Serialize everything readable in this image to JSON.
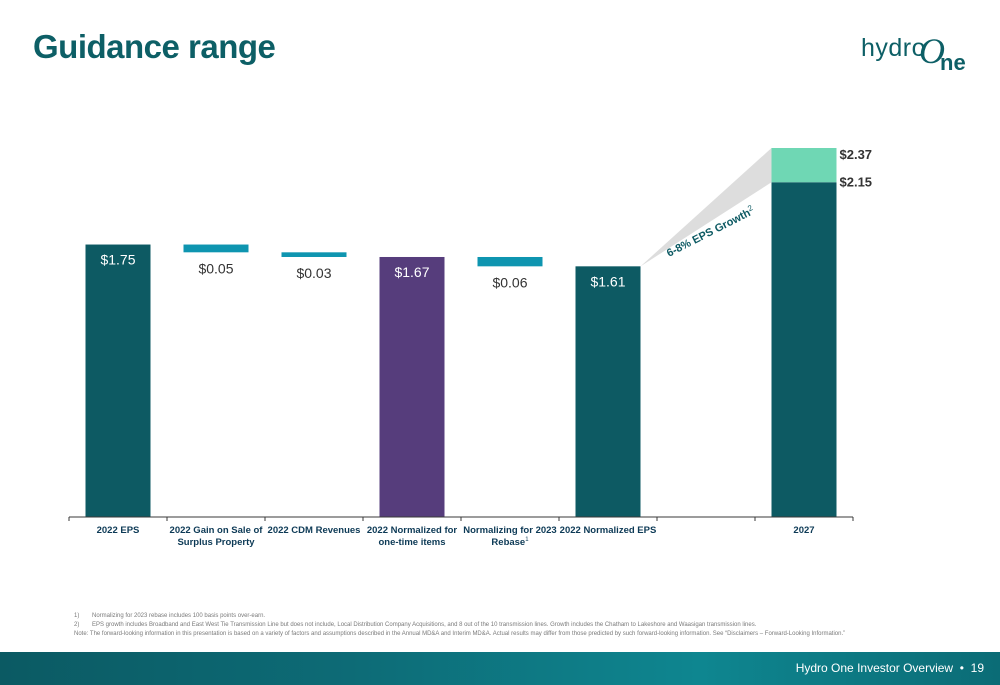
{
  "page": {
    "title": "Guidance range",
    "logo_text": {
      "part1": "hydro",
      "part2_o": "O",
      "part2_ne": "ne"
    },
    "footer": {
      "label": "Hydro One Investor Overview",
      "separator": "•",
      "page_number": "19"
    }
  },
  "colors": {
    "teal_dark": "#0d5a63",
    "purple": "#563d7c",
    "teal_light": "#0e95b0",
    "mint": "#6fd7b4",
    "wedge_gray": "#d9d9d9",
    "title_teal": "#0d5f66"
  },
  "chart_data": {
    "type": "bar",
    "subtype": "waterfall",
    "categories": [
      "2022 EPS",
      "2022 Gain on Sale of Surplus Property",
      "2022 CDM Revenues",
      "2022 Normalized for one-time items",
      "Normalizing for 2023 Rebase",
      "2022 Normalized EPS",
      "",
      "2027"
    ],
    "category_superscripts": [
      "",
      "",
      "",
      "",
      "1",
      "",
      "",
      ""
    ],
    "bars": [
      {
        "category": "2022 EPS",
        "kind": "total",
        "value": 1.75,
        "label": "$1.75",
        "color": "#0d5a63"
      },
      {
        "category": "2022 Gain on Sale of Surplus Property",
        "kind": "decrease",
        "from": 1.75,
        "to": 1.7,
        "label": "$0.05",
        "color": "#0e95b0"
      },
      {
        "category": "2022 CDM Revenues",
        "kind": "decrease",
        "from": 1.7,
        "to": 1.67,
        "label": "$0.03",
        "color": "#0e95b0"
      },
      {
        "category": "2022 Normalized for one-time items",
        "kind": "total",
        "value": 1.67,
        "label": "$1.67",
        "color": "#563d7c"
      },
      {
        "category": "Normalizing for 2023 Rebase",
        "kind": "decrease",
        "from": 1.67,
        "to": 1.61,
        "label": "$0.06",
        "color": "#0e95b0"
      },
      {
        "category": "2022 Normalized EPS",
        "kind": "total",
        "value": 1.61,
        "label": "$1.61",
        "color": "#0d5a63"
      },
      {
        "category": "2027",
        "kind": "range",
        "low": 2.15,
        "high": 2.37,
        "low_label": "$2.15",
        "high_label": "$2.37",
        "color_low": "#0d5a63",
        "color_high": "#6fd7b4"
      }
    ],
    "annotation": {
      "text": "6-8% EPS Growth",
      "superscript": "2"
    },
    "ylim": [
      0,
      2.37
    ],
    "grid": false,
    "legend": "none",
    "xlabel": "",
    "ylabel": ""
  },
  "footnotes": [
    {
      "num": "1)",
      "text": "Normalizing for 2023 rebase includes 100 basis points over-earn."
    },
    {
      "num": "2)",
      "text": "EPS growth includes Broadband and East West Tie Transmission Line but does not include, Local Distribution Company Acquisitions, and 8 out of the 10 transmission lines. Growth includes the Chatham to Lakeshore and Waasigan transmission lines."
    },
    {
      "num": "",
      "text": "Note: The forward-looking information in this presentation is based on a variety of factors and assumptions described in the Annual MD&A and Interim MD&A. Actual results may differ from those predicted by such forward-looking information. See “Disclaimers – Forward-Looking Information.”"
    }
  ]
}
